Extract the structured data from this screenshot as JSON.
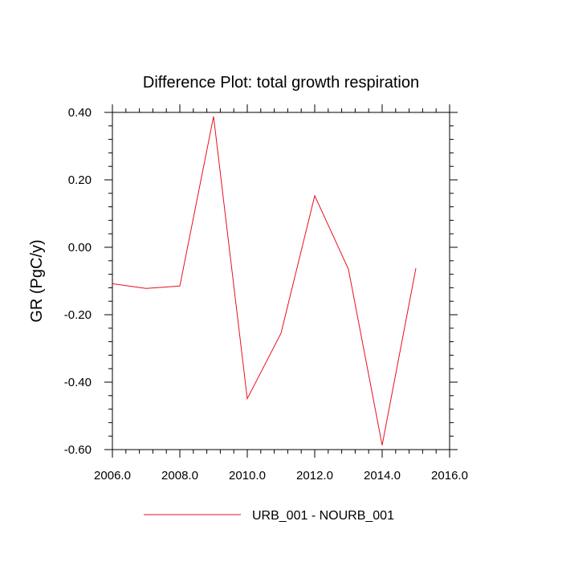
{
  "chart_data": {
    "type": "line",
    "title": "Difference Plot: total growth respiration",
    "xlabel": "",
    "ylabel": "GR  (PgC/y)",
    "xlim": [
      2006,
      2016
    ],
    "ylim": [
      -0.6,
      0.4
    ],
    "x_ticks": [
      2006,
      2008,
      2010,
      2012,
      2014,
      2016
    ],
    "x_tick_labels": [
      "2006.0",
      "2008.0",
      "2010.0",
      "2012.0",
      "2014.0",
      "2016.0"
    ],
    "y_ticks": [
      0.4,
      0.2,
      0.0,
      -0.2,
      -0.4,
      -0.6
    ],
    "y_tick_labels": [
      "0.40",
      "0.20",
      "0.00",
      "-0.20",
      "-0.40",
      "-0.60"
    ],
    "grid": false,
    "legend_position": "bottom-center",
    "series": [
      {
        "name": "URB_001 - NOURB_001",
        "color": "#e8101c",
        "x": [
          2006,
          2007,
          2008,
          2009,
          2010,
          2011,
          2012,
          2013,
          2014,
          2015
        ],
        "values": [
          -0.108,
          -0.122,
          -0.115,
          0.388,
          -0.449,
          -0.255,
          0.153,
          -0.065,
          -0.587,
          -0.062
        ]
      }
    ]
  }
}
